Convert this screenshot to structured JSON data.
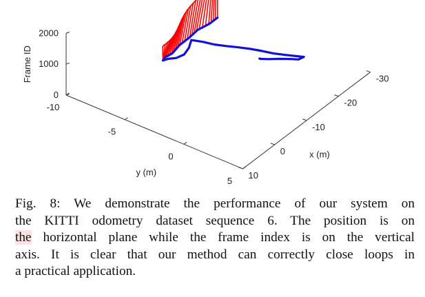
{
  "chart_data": {
    "type": "line3d",
    "z_axis": {
      "label": "Frame ID",
      "ticks": [
        {
          "v": 0,
          "t": "0"
        },
        {
          "v": 1000,
          "t": "1000"
        },
        {
          "v": 2000,
          "t": "2000"
        }
      ],
      "range": [
        0,
        2000
      ]
    },
    "y_axis": {
      "label": "y (m)",
      "ticks": [
        {
          "v": -10,
          "t": "-10"
        },
        {
          "v": -5,
          "t": "-5"
        },
        {
          "v": 0,
          "t": "0"
        },
        {
          "v": 5,
          "t": "5"
        }
      ],
      "range": [
        -10,
        5
      ]
    },
    "x_axis": {
      "label": "x (m)",
      "ticks": [
        {
          "v": 10,
          "t": "10"
        },
        {
          "v": 0,
          "t": "0"
        },
        {
          "v": -10,
          "t": "-10"
        },
        {
          "v": -20,
          "t": "-20"
        },
        {
          "v": -30,
          "t": "-30"
        }
      ],
      "range": [
        10,
        -30
      ]
    },
    "trajectory": {
      "color": "#1010d8",
      "points": [
        [
          -27.5,
          -7.3,
          0
        ],
        [
          -25,
          -7.3,
          0
        ],
        [
          -22,
          -7.5,
          0
        ],
        [
          -19,
          -7.4,
          0
        ],
        [
          -16,
          -7.4,
          0
        ],
        [
          -13,
          -7.2,
          0
        ],
        [
          -11,
          -7.3,
          0
        ],
        [
          -10,
          -7.2,
          0
        ],
        [
          -10,
          -7.2,
          0
        ],
        [
          -10.2,
          -6.8,
          10
        ],
        [
          -10.5,
          -6.2,
          20
        ],
        [
          -11.5,
          -5.8,
          30
        ],
        [
          -13,
          -5.8,
          40
        ],
        [
          -14.5,
          -6,
          50
        ],
        [
          -14.5,
          -5,
          60
        ],
        [
          -14.2,
          -4,
          70
        ],
        [
          -14.3,
          -3,
          80
        ],
        [
          -14.5,
          -2,
          90
        ],
        [
          -14.6,
          -1,
          100
        ],
        [
          -14.5,
          0,
          110
        ],
        [
          -14.3,
          1,
          120
        ],
        [
          -14.4,
          2,
          130
        ],
        [
          -14.6,
          3,
          140
        ],
        [
          -14.7,
          3.5,
          145
        ],
        [
          -13,
          3.5,
          150
        ],
        [
          -11.5,
          3.3,
          160
        ],
        [
          -9.5,
          2.9,
          170
        ],
        [
          -7.3,
          2.5,
          180
        ],
        [
          -5.7,
          2.3,
          190
        ],
        [
          -5.2,
          2.3,
          195
        ]
      ]
    },
    "loop_closures": {
      "color": "#ff0000",
      "count": 30
    }
  },
  "caption": {
    "lines": [
      "Fig. 8: We demonstrate the performance of our system on",
      "the KITTI odometry dataset sequence 6. The position is on",
      "the horizontal plane while the frame index is on the vertical",
      "axis. It is clear that our method can correctly close loops in",
      "a practical application."
    ]
  }
}
